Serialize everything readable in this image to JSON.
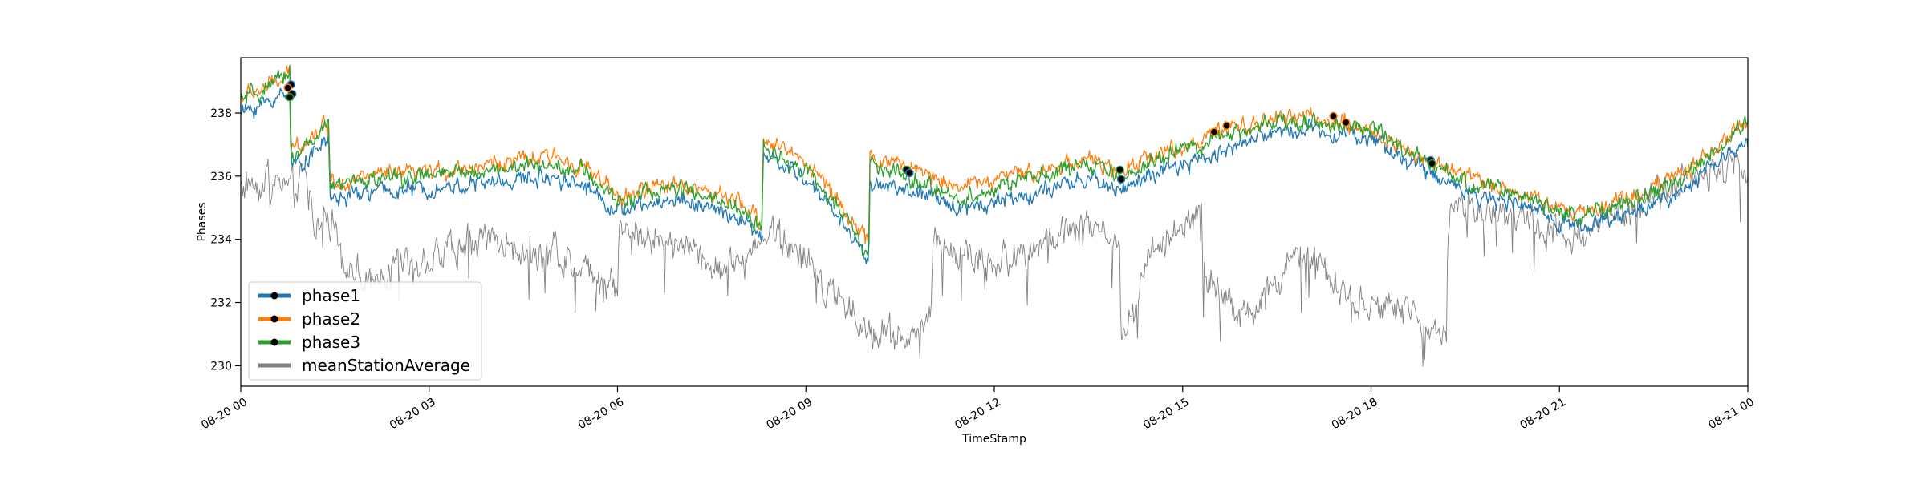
{
  "chart_data": {
    "type": "line",
    "title": "",
    "xlabel": "TimeStamp",
    "ylabel": "Phases",
    "xlim": [
      "2020-08-20 00:00",
      "2020-08-21 00:00"
    ],
    "ylim": [
      229.35,
      239.75
    ],
    "x_ticks": [
      "08-20 00",
      "08-20 03",
      "08-20 06",
      "08-20 09",
      "08-20 12",
      "08-20 15",
      "08-20 18",
      "08-20 21",
      "08-21 00"
    ],
    "x_tick_hours": [
      0,
      3,
      6,
      9,
      12,
      15,
      18,
      21,
      24
    ],
    "y_ticks": [
      230,
      232,
      234,
      236,
      238
    ],
    "y_tick_labels": [
      "230",
      "232",
      "234",
      "236",
      "238"
    ],
    "grid": false,
    "legend_position": "lower-left",
    "series": [
      {
        "name": "phase1",
        "color": "#1f77b4",
        "noise": 0.22,
        "x_hours": [
          0,
          0.25,
          0.5,
          0.78,
          0.8,
          1.0,
          1.2,
          1.4,
          1.42,
          1.6,
          2.0,
          3.0,
          4.0,
          5.0,
          5.5,
          6.0,
          6.5,
          7.0,
          8.0,
          8.3,
          8.32,
          9.0,
          9.5,
          10.0,
          10.02,
          10.5,
          11.0,
          11.5,
          12.0,
          12.5,
          13.0,
          13.5,
          14.0,
          14.5,
          15.0,
          15.5,
          16.0,
          16.5,
          17.0,
          17.5,
          18.0,
          18.5,
          19.0,
          19.5,
          20.0,
          20.5,
          21.0,
          21.5,
          22.0,
          22.5,
          23.0,
          23.5,
          24.0
        ],
        "values": [
          238.0,
          238.2,
          238.4,
          238.8,
          236.3,
          236.5,
          236.8,
          237.2,
          235.3,
          235.3,
          235.5,
          235.6,
          235.8,
          236.0,
          235.7,
          234.9,
          235.1,
          235.3,
          234.6,
          234.0,
          236.7,
          235.9,
          234.8,
          233.3,
          235.8,
          235.6,
          235.3,
          235.0,
          235.2,
          235.4,
          235.6,
          235.9,
          235.6,
          236.0,
          236.3,
          236.7,
          237.1,
          237.4,
          237.5,
          237.4,
          237.2,
          236.6,
          236.0,
          235.6,
          235.2,
          235.0,
          234.6,
          234.4,
          234.8,
          235.1,
          235.6,
          236.4,
          237.1
        ]
      },
      {
        "name": "phase2",
        "color": "#ff7f0e",
        "noise": 0.22,
        "x_hours": [
          0,
          0.25,
          0.5,
          0.78,
          0.8,
          1.0,
          1.2,
          1.4,
          1.42,
          1.6,
          2.0,
          3.0,
          4.0,
          5.0,
          5.5,
          6.0,
          6.5,
          7.0,
          8.0,
          8.3,
          8.32,
          9.0,
          9.5,
          10.0,
          10.02,
          10.5,
          11.0,
          11.5,
          12.0,
          12.5,
          13.0,
          13.5,
          14.0,
          14.5,
          15.0,
          15.5,
          16.0,
          16.5,
          17.0,
          17.5,
          18.0,
          18.5,
          19.0,
          19.5,
          20.0,
          20.5,
          21.0,
          21.5,
          22.0,
          22.5,
          23.0,
          23.5,
          24.0
        ],
        "values": [
          238.5,
          238.7,
          238.9,
          239.2,
          236.9,
          237.1,
          237.4,
          237.7,
          235.9,
          235.8,
          236.0,
          236.1,
          236.4,
          236.6,
          236.3,
          235.3,
          235.6,
          235.8,
          235.1,
          234.5,
          237.2,
          236.5,
          235.3,
          233.8,
          236.6,
          236.4,
          236.0,
          235.7,
          235.9,
          236.1,
          236.3,
          236.6,
          236.0,
          236.7,
          236.9,
          237.3,
          237.6,
          237.8,
          237.9,
          237.7,
          237.4,
          236.9,
          236.4,
          236.0,
          235.7,
          235.4,
          235.0,
          234.9,
          235.3,
          235.6,
          236.2,
          236.9,
          237.7
        ]
      },
      {
        "name": "phase3",
        "color": "#2ca02c",
        "noise": 0.22,
        "x_hours": [
          0,
          0.25,
          0.5,
          0.78,
          0.8,
          1.0,
          1.2,
          1.4,
          1.42,
          1.6,
          2.0,
          3.0,
          4.0,
          5.0,
          5.5,
          6.0,
          6.5,
          7.0,
          8.0,
          8.3,
          8.32,
          9.0,
          9.5,
          10.0,
          10.02,
          10.5,
          11.0,
          11.5,
          12.0,
          12.5,
          13.0,
          13.5,
          14.0,
          14.5,
          15.0,
          15.5,
          16.0,
          16.5,
          17.0,
          17.5,
          18.0,
          18.5,
          19.0,
          19.5,
          20.0,
          20.5,
          21.0,
          21.5,
          22.0,
          22.5,
          23.0,
          23.5,
          24.0
        ],
        "values": [
          238.4,
          238.6,
          238.8,
          239.4,
          236.6,
          236.9,
          237.2,
          237.6,
          235.7,
          235.7,
          235.9,
          236.0,
          236.2,
          236.4,
          236.1,
          235.2,
          235.5,
          235.6,
          234.9,
          234.3,
          236.9,
          236.2,
          235.0,
          233.5,
          236.4,
          236.0,
          235.6,
          235.3,
          235.6,
          235.9,
          236.1,
          236.4,
          235.9,
          236.5,
          236.8,
          237.1,
          237.5,
          237.7,
          237.8,
          237.6,
          237.5,
          236.8,
          236.3,
          235.8,
          235.6,
          235.3,
          234.9,
          234.8,
          235.1,
          235.5,
          236.0,
          236.8,
          237.7
        ]
      },
      {
        "name": "meanStationAverage",
        "color": "#808080",
        "noise": 0.45,
        "x_hours": [
          0,
          0.3,
          0.6,
          0.9,
          1.0,
          1.2,
          1.4,
          1.6,
          1.8,
          2.0,
          2.5,
          3.0,
          3.5,
          4.0,
          4.5,
          5.0,
          5.5,
          6.0,
          6.02,
          6.5,
          7.0,
          7.5,
          8.0,
          8.3,
          8.8,
          9.3,
          9.8,
          10.0,
          10.3,
          10.6,
          11.0,
          11.02,
          11.5,
          12.0,
          12.5,
          13.0,
          13.5,
          14.0,
          14.02,
          14.5,
          15.0,
          15.3,
          15.32,
          15.7,
          16.0,
          16.5,
          17.0,
          17.5,
          18.0,
          18.5,
          19.0,
          19.2,
          19.22,
          19.5,
          20.0,
          20.5,
          21.0,
          21.3,
          21.6,
          22.0,
          22.5,
          23.0,
          23.5,
          24.0
        ],
        "values": [
          235.7,
          235.9,
          236.0,
          235.4,
          236.5,
          234.2,
          234.8,
          233.5,
          233.0,
          232.7,
          233.1,
          233.4,
          233.8,
          234.0,
          233.7,
          233.5,
          233.1,
          232.4,
          234.3,
          234.1,
          233.8,
          233.3,
          233.2,
          234.3,
          233.7,
          232.5,
          231.5,
          231.0,
          231.2,
          231.0,
          231.2,
          234.0,
          233.5,
          233.3,
          233.6,
          234.1,
          234.4,
          234.0,
          230.7,
          233.8,
          234.4,
          234.9,
          232.8,
          232.1,
          231.5,
          232.6,
          233.6,
          232.4,
          232.0,
          231.7,
          231.3,
          231.0,
          234.6,
          234.9,
          235.0,
          234.6,
          234.3,
          233.8,
          234.5,
          234.8,
          235.3,
          235.8,
          236.2,
          236.6
        ]
      }
    ],
    "event_markers": [
      {
        "series": "phase1",
        "x_hour": 0.8,
        "y": 238.9
      },
      {
        "series": "phase1",
        "x_hour": 0.82,
        "y": 238.6
      },
      {
        "series": "phase2",
        "x_hour": 0.75,
        "y": 238.8
      },
      {
        "series": "phase3",
        "x_hour": 0.78,
        "y": 238.5
      },
      {
        "series": "phase3",
        "x_hour": 10.6,
        "y": 236.2
      },
      {
        "series": "phase1",
        "x_hour": 10.65,
        "y": 236.1
      },
      {
        "series": "phase3",
        "x_hour": 14.0,
        "y": 236.2
      },
      {
        "series": "phase1",
        "x_hour": 14.02,
        "y": 235.9
      },
      {
        "series": "phase2",
        "x_hour": 15.5,
        "y": 237.4
      },
      {
        "series": "phase2",
        "x_hour": 15.7,
        "y": 237.6
      },
      {
        "series": "phase2",
        "x_hour": 17.4,
        "y": 237.9
      },
      {
        "series": "phase2",
        "x_hour": 17.6,
        "y": 237.7
      },
      {
        "series": "phase1",
        "x_hour": 18.95,
        "y": 236.5
      },
      {
        "series": "phase3",
        "x_hour": 18.97,
        "y": 236.4
      }
    ]
  }
}
